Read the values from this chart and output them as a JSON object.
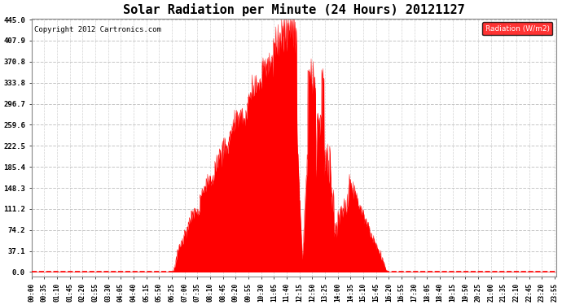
{
  "title": "Solar Radiation per Minute (24 Hours) 20121127",
  "copyright_text": "Copyright 2012 Cartronics.com",
  "legend_label": "Radiation (W/m2)",
  "fill_color": "#FF0000",
  "line_color": "#FF0000",
  "background_color": "#FFFFFF",
  "grid_color": "#C0C0C0",
  "dashed_line_color": "#FF0000",
  "ytick_values": [
    0.0,
    37.1,
    74.2,
    111.2,
    148.3,
    185.4,
    222.5,
    259.6,
    296.7,
    333.8,
    370.8,
    407.9,
    445.0
  ],
  "ymax": 445.0,
  "ymin": 0.0,
  "total_minutes": 1440,
  "sunrise_minute": 385,
  "peak_minute": 710,
  "peak_value": 445.0,
  "sunset_minute": 980,
  "xtick_times": [
    "00:00",
    "00:35",
    "01:10",
    "01:45",
    "02:20",
    "02:55",
    "03:30",
    "04:05",
    "04:40",
    "05:15",
    "05:50",
    "06:25",
    "07:00",
    "07:35",
    "08:10",
    "08:45",
    "09:20",
    "09:55",
    "10:30",
    "11:05",
    "11:40",
    "12:15",
    "12:50",
    "13:25",
    "14:00",
    "14:35",
    "15:10",
    "15:45",
    "16:20",
    "16:55",
    "17:30",
    "18:05",
    "18:40",
    "19:15",
    "19:50",
    "20:25",
    "21:00",
    "21:35",
    "22:10",
    "22:45",
    "23:20",
    "23:55"
  ]
}
